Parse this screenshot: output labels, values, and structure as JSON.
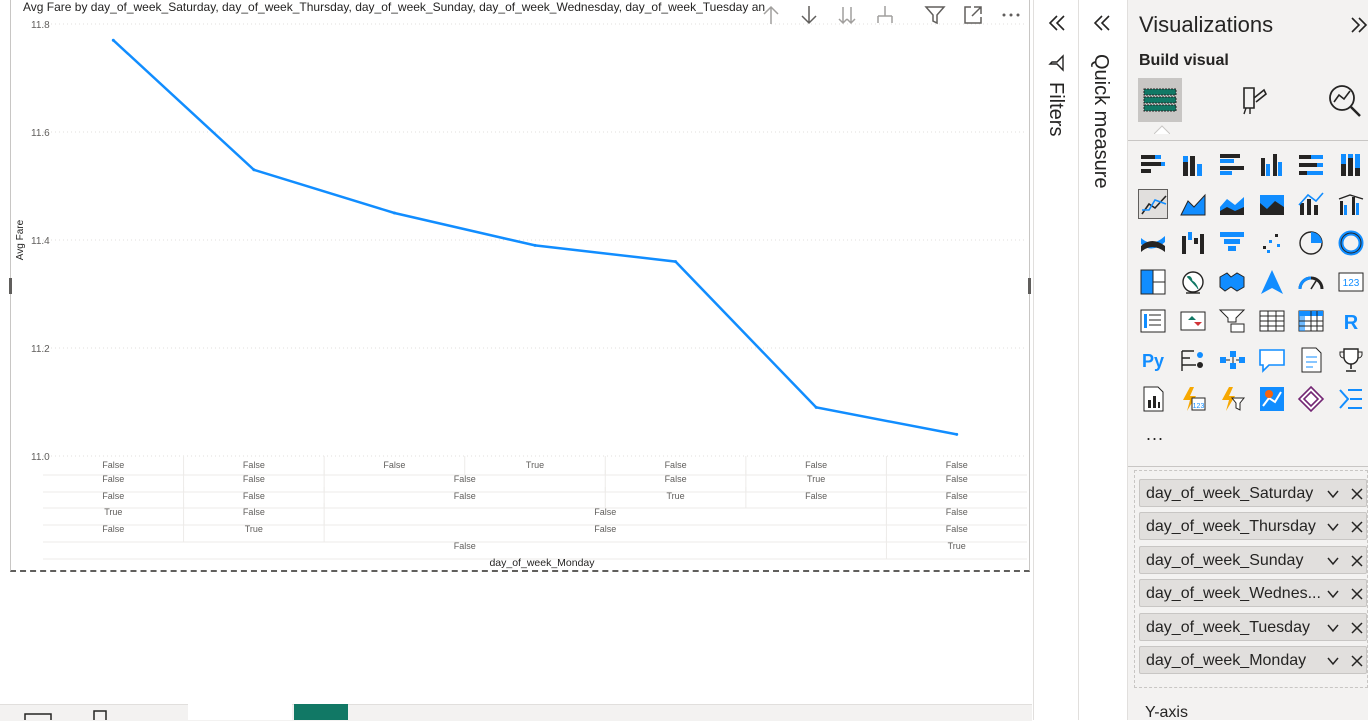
{
  "visual": {
    "title": "Avg Fare by day_of_week_Saturday, day_of_week_Thursday, day_of_week_Sunday, day_of_week_Wednesday, day_of_week_Tuesday and day_of_week_Monday",
    "header_icons": [
      "arrow-up-icon",
      "arrow-down-icon",
      "double-arrow-down-icon",
      "expand-hierarchy-icon",
      "filter-icon",
      "focus-mode-icon",
      "more-options-icon"
    ]
  },
  "chart_data": {
    "type": "line",
    "title": "Avg Fare by day_of_week_Saturday, day_of_week_Thursday, day_of_week_Sunday, day_of_week_Wednesday, day_of_week_Tuesday and day_of_week_Monday",
    "ylabel": "Avg Fare",
    "xlabel": "day_of_week_Monday",
    "ylim": [
      11.0,
      11.8
    ],
    "yticks": [
      "11.0",
      "11.2",
      "11.4",
      "11.6",
      "11.8"
    ],
    "series": [
      {
        "name": "Avg Fare",
        "color": "#118DFF",
        "values": [
          11.77,
          11.53,
          11.45,
          11.39,
          11.36,
          11.09,
          11.04
        ]
      }
    ],
    "category_levels": [
      [
        "False",
        "False",
        "False",
        "True",
        "False",
        "False",
        "False"
      ],
      [
        "False",
        "False",
        "False",
        "False",
        "True",
        "False"
      ],
      [
        "False",
        "False",
        "False",
        "True",
        "False",
        "False"
      ],
      [
        "True",
        "False",
        "False",
        "False"
      ],
      [
        "False",
        "True",
        "False",
        "False"
      ],
      [
        "False",
        "True"
      ]
    ]
  },
  "panes": {
    "filters_label": "Filters",
    "quick_measure_label": "Quick measure"
  },
  "viz_pane": {
    "title": "Visualizations",
    "build_visual_label": "Build visual",
    "more_label": "...",
    "fields": [
      "day_of_week_Saturday",
      "day_of_week_Thursday",
      "day_of_week_Sunday",
      "day_of_week_Wednes...",
      "day_of_week_Tuesday",
      "day_of_week_Monday"
    ],
    "y_axis_label": "Y-axis",
    "gallery": [
      "stacked-bar-icon",
      "stacked-column-icon",
      "clustered-bar-icon",
      "clustered-column-icon",
      "100-bar-icon",
      "100-column-icon",
      "line-chart-icon",
      "area-chart-icon",
      "stacked-area-icon",
      "100-area-icon",
      "line-column-icon",
      "line-clustered-column-icon",
      "ribbon-chart-icon",
      "waterfall-icon",
      "funnel-icon",
      "scatter-icon",
      "pie-icon",
      "donut-icon",
      "treemap-icon",
      "map-icon",
      "filled-map-icon",
      "azure-map-icon",
      "gauge-icon",
      "card-icon",
      "multirow-card-icon",
      "kpi-icon",
      "slicer-icon",
      "table-icon",
      "matrix-icon",
      "r-visual-icon",
      "python-visual-icon",
      "key-influencers-icon",
      "decomposition-tree-icon",
      "qna-icon",
      "smart-narrative-icon",
      "metrics-icon",
      "paginated-report-icon",
      "power-automate-icon",
      "powerapps-icon",
      "arcgis-icon",
      "power-apps-icon",
      "more-visuals-icon"
    ]
  }
}
